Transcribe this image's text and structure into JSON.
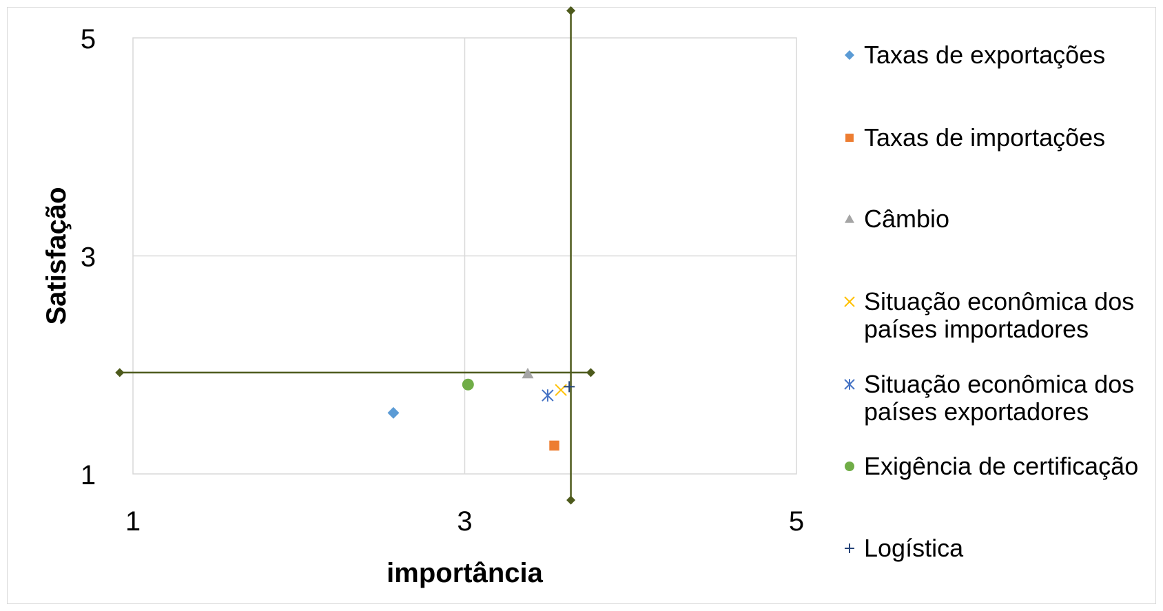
{
  "chart_data": {
    "type": "scatter",
    "xlabel": "importância",
    "ylabel": "Satisfação",
    "xlim": [
      1,
      5
    ],
    "ylim": [
      1,
      5
    ],
    "xticks": [
      1,
      3,
      5
    ],
    "yticks": [
      1,
      3,
      5
    ],
    "grid": true,
    "legend_position": "right",
    "series": [
      {
        "name": "Taxas de exportações",
        "marker": "diamond",
        "color": "#5b9bd5",
        "x": [
          2.57
        ],
        "y": [
          1.56
        ]
      },
      {
        "name": "Taxas de importações",
        "marker": "square",
        "color": "#ed7d31",
        "x": [
          3.54
        ],
        "y": [
          1.26
        ]
      },
      {
        "name": "Câmbio",
        "marker": "triangle",
        "color": "#a5a5a5",
        "x": [
          3.38
        ],
        "y": [
          1.92
        ]
      },
      {
        "name": "Situação econômica dos países importadores",
        "marker": "x",
        "color": "#ffc000",
        "x": [
          3.58
        ],
        "y": [
          1.77
        ]
      },
      {
        "name": "Situação econômica dos países exportadores",
        "marker": "star",
        "color": "#4472c4",
        "x": [
          3.5
        ],
        "y": [
          1.72
        ]
      },
      {
        "name": "Exigência de certificação",
        "marker": "circle",
        "color": "#70ad47",
        "x": [
          3.02
        ],
        "y": [
          1.82
        ]
      },
      {
        "name": "Logística",
        "marker": "plus",
        "color": "#264478",
        "x": [
          3.63
        ],
        "y": [
          1.8
        ]
      }
    ],
    "reference_lines": {
      "color": "#4d5a1c",
      "horizontal": {
        "y": 1.93,
        "x_from": 0.92,
        "x_to": 3.76
      },
      "vertical": {
        "x": 3.64,
        "y_from": 0.76,
        "y_to": 5.25
      }
    }
  }
}
